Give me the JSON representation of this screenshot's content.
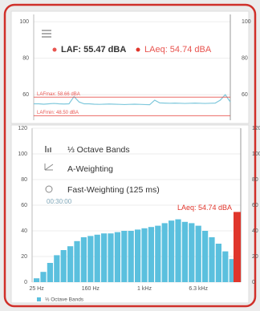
{
  "header": {
    "laf": "LAF: 55.47 dBA",
    "laeq": "LAeq: 54.74 dBA"
  },
  "panel": {
    "bands": "⅓ Octave Bands",
    "weighting": "A-Weighting",
    "time_weighting": "Fast-Weighting (125 ms)",
    "elapsed": "00:30:00"
  },
  "chart_data": [
    {
      "type": "line",
      "ylim": [
        46,
        104
      ],
      "yticks": [
        100,
        80,
        60
      ],
      "series": [
        {
          "color": "#7fc8dc",
          "values": [
            55,
            55,
            54.8,
            55,
            55.2,
            55,
            54.9,
            55,
            59,
            56,
            55,
            55,
            54.8,
            54.7,
            54.8,
            54.9,
            54.8,
            54.7,
            54.6,
            54.7,
            54.8,
            54.7,
            54.6,
            54.5,
            57,
            55.5,
            55.4,
            55.3,
            55.4,
            55.3,
            55.2,
            55.3,
            55.4,
            55.3,
            55.2,
            55.3,
            55.4,
            57,
            60,
            56
          ]
        }
      ],
      "lafmax": {
        "label": "LAFmax: 58.66 dBA",
        "value": 58.66,
        "color": "#e8544f"
      },
      "lafmin": {
        "label": "LAFmin: 48.50 dBA",
        "value": 48.5,
        "color": "#e8544f"
      }
    },
    {
      "type": "bar",
      "ylim": [
        0,
        120
      ],
      "yticks": [
        0,
        20,
        40,
        60,
        80,
        100,
        120
      ],
      "categories": [
        "25 Hz",
        null,
        null,
        null,
        null,
        null,
        null,
        null,
        "160 Hz",
        null,
        null,
        null,
        null,
        null,
        null,
        null,
        "1 kHz",
        null,
        null,
        null,
        null,
        null,
        null,
        null,
        "6.3 kHz",
        null,
        null,
        null,
        null,
        null
      ],
      "series": [
        {
          "name": "⅓ Octave Bands",
          "color": "#5bc0de",
          "values": [
            3,
            8,
            15,
            21,
            25,
            28,
            32,
            35,
            36,
            37,
            38,
            38,
            39,
            40,
            40,
            41,
            42,
            43,
            44,
            46,
            48,
            49,
            47,
            46,
            44,
            40,
            35,
            30,
            24,
            18
          ]
        }
      ],
      "laeq": {
        "label": "LAeq: 54.74 dBA",
        "value": 54.74,
        "color": "#e0362c"
      }
    }
  ]
}
